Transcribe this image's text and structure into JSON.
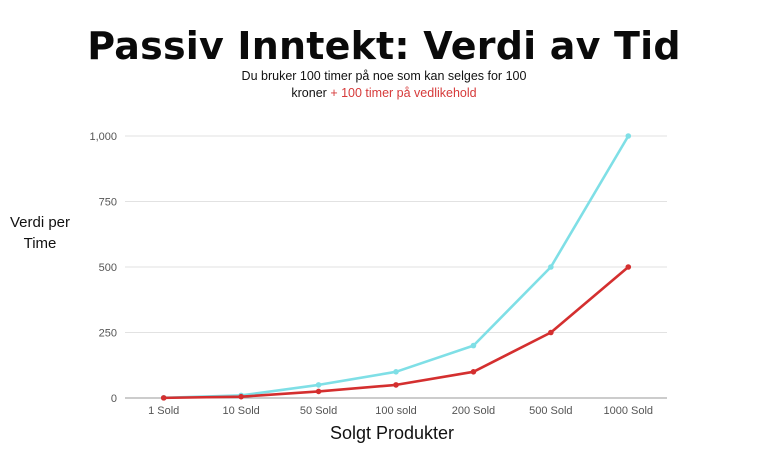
{
  "chart_data": {
    "type": "line",
    "title": "Passiv Inntekt: Verdi av Tid",
    "subtitle_main": "Du bruker 100 timer på noe som kan selges for 100 kroner",
    "subtitle_accent": "+ 100 timer på vedlikehold",
    "xlabel": "Solgt Produkter",
    "ylabel": "Verdi per Time",
    "categories": [
      "1 Sold",
      "10 Sold",
      "50 Sold",
      "100 sold",
      "200 Sold",
      "500 Sold",
      "1000 Sold"
    ],
    "ylim": [
      0,
      1000
    ],
    "yticks": [
      0,
      250,
      500,
      750,
      1000
    ],
    "ytick_labels": [
      "0",
      "250",
      "500",
      "750",
      "1,000"
    ],
    "grid": true,
    "series": [
      {
        "values": [
          1,
          10,
          50,
          100,
          200,
          500,
          1000
        ],
        "color": "#7fdfe6"
      },
      {
        "values": [
          0.5,
          5,
          25,
          50,
          100,
          250,
          500
        ],
        "color": "#d42f2f"
      }
    ]
  }
}
